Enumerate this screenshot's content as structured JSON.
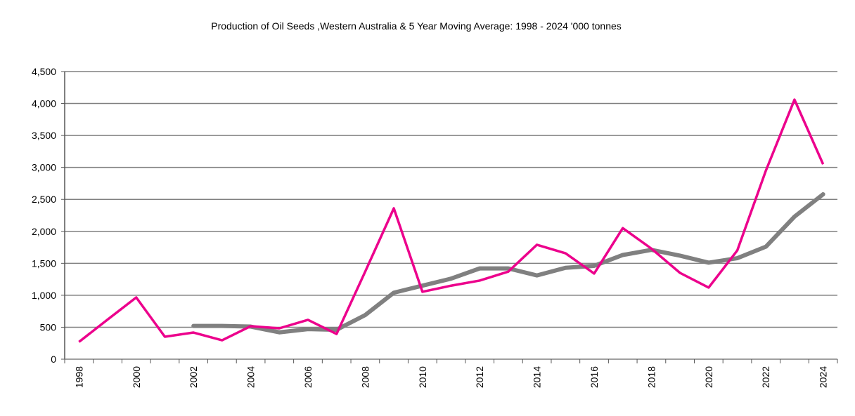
{
  "chart_data": {
    "type": "line",
    "title": "Production of Oil Seeds ,Western Australia & 5 Year Moving Average: 1998 - 2024 '000 tonnes",
    "xlabel": "",
    "ylabel": "",
    "ylim": [
      0,
      4500
    ],
    "yticks": [
      0,
      500,
      1000,
      1500,
      2000,
      2500,
      3000,
      3500,
      4000,
      4500
    ],
    "ytick_labels": [
      "0",
      "500",
      "1,000",
      "1,500",
      "2,000",
      "2,500",
      "3,000",
      "3,500",
      "4,000",
      "4,500"
    ],
    "x": [
      1998,
      1999,
      2000,
      2001,
      2002,
      2003,
      2004,
      2005,
      2006,
      2007,
      2008,
      2009,
      2010,
      2011,
      2012,
      2013,
      2014,
      2015,
      2016,
      2017,
      2018,
      2019,
      2020,
      2021,
      2022,
      2023,
      2024
    ],
    "xtick_labels": [
      "1998",
      "2000",
      "2002",
      "2004",
      "2006",
      "2008",
      "2010",
      "2012",
      "2014",
      "2016",
      "2018",
      "2020",
      "2022",
      "2024"
    ],
    "grid": true,
    "series": [
      {
        "name": "Production",
        "color": "#EC008C",
        "values": [
          270,
          620,
          966,
          351,
          417,
          296,
          516,
          483,
          615,
          395,
          1370,
          2360,
          1054,
          1150,
          1230,
          1370,
          1790,
          1657,
          1340,
          2050,
          1730,
          1350,
          1120,
          1700,
          2950,
          4060,
          3050
        ]
      },
      {
        "name": "5 Year Moving Average",
        "color": "#808080",
        "values": [
          null,
          null,
          null,
          null,
          520,
          520,
          510,
          420,
          470,
          460,
          690,
          1040,
          1150,
          1260,
          1420,
          1420,
          1310,
          1430,
          1460,
          1630,
          1710,
          1620,
          1510,
          1580,
          1760,
          2230,
          2580
        ]
      }
    ]
  }
}
